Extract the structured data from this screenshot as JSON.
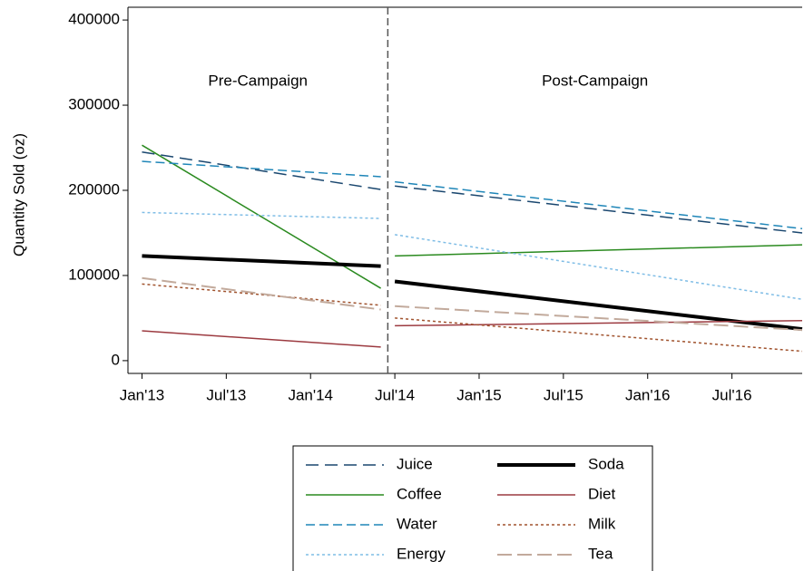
{
  "chart_data": {
    "type": "line",
    "y_label": "Quantity Sold (oz)",
    "annotations": [
      "Pre-Campaign",
      "Post-Campaign"
    ],
    "x": [
      0,
      17,
      18,
      47
    ],
    "vline": 17.5,
    "xlim": [
      -1,
      47
    ],
    "xticks": [
      {
        "value": 0,
        "label": "Jan'13"
      },
      {
        "value": 6,
        "label": "Jul'13"
      },
      {
        "value": 12,
        "label": "Jan'14"
      },
      {
        "value": 18,
        "label": "Jul'14"
      },
      {
        "value": 24,
        "label": "Jan'15"
      },
      {
        "value": 30,
        "label": "Jul'15"
      },
      {
        "value": 36,
        "label": "Jan'16"
      },
      {
        "value": 42,
        "label": "Jul'16"
      }
    ],
    "ylim": [
      -15000,
      415000
    ],
    "yticks": [
      0,
      100000,
      200000,
      300000,
      400000
    ],
    "series": [
      {
        "name": "Juice",
        "color": "#1a476f",
        "dash": "14 7",
        "width": 1.5,
        "values": [
          245000,
          201000,
          205000,
          150000
        ]
      },
      {
        "name": "Coffee",
        "color": "#2a8a1f",
        "dash": "none",
        "width": 1.5,
        "values": [
          253000,
          85000,
          123000,
          136000
        ]
      },
      {
        "name": "Water",
        "color": "#1f86b8",
        "dash": "10 5",
        "width": 1.5,
        "values": [
          234000,
          216000,
          210000,
          155000
        ]
      },
      {
        "name": "Energy",
        "color": "#7fbde6",
        "dash": "3 3",
        "width": 1.5,
        "values": [
          174000,
          167000,
          148000,
          72000
        ]
      },
      {
        "name": "Soda",
        "color": "#000000",
        "dash": "none",
        "width": 4,
        "values": [
          123000,
          111000,
          93000,
          37000
        ]
      },
      {
        "name": "Diet",
        "color": "#9c3a40",
        "dash": "none",
        "width": 1.5,
        "values": [
          35000,
          16000,
          41000,
          47000
        ]
      },
      {
        "name": "Milk",
        "color": "#a0522d",
        "dash": "3 3",
        "width": 1.5,
        "values": [
          90000,
          65000,
          50000,
          11000
        ]
      },
      {
        "name": "Tea",
        "color": "#c2aa9c",
        "dash": "16 6",
        "width": 2,
        "values": [
          97000,
          60000,
          64000,
          36000
        ]
      }
    ]
  }
}
